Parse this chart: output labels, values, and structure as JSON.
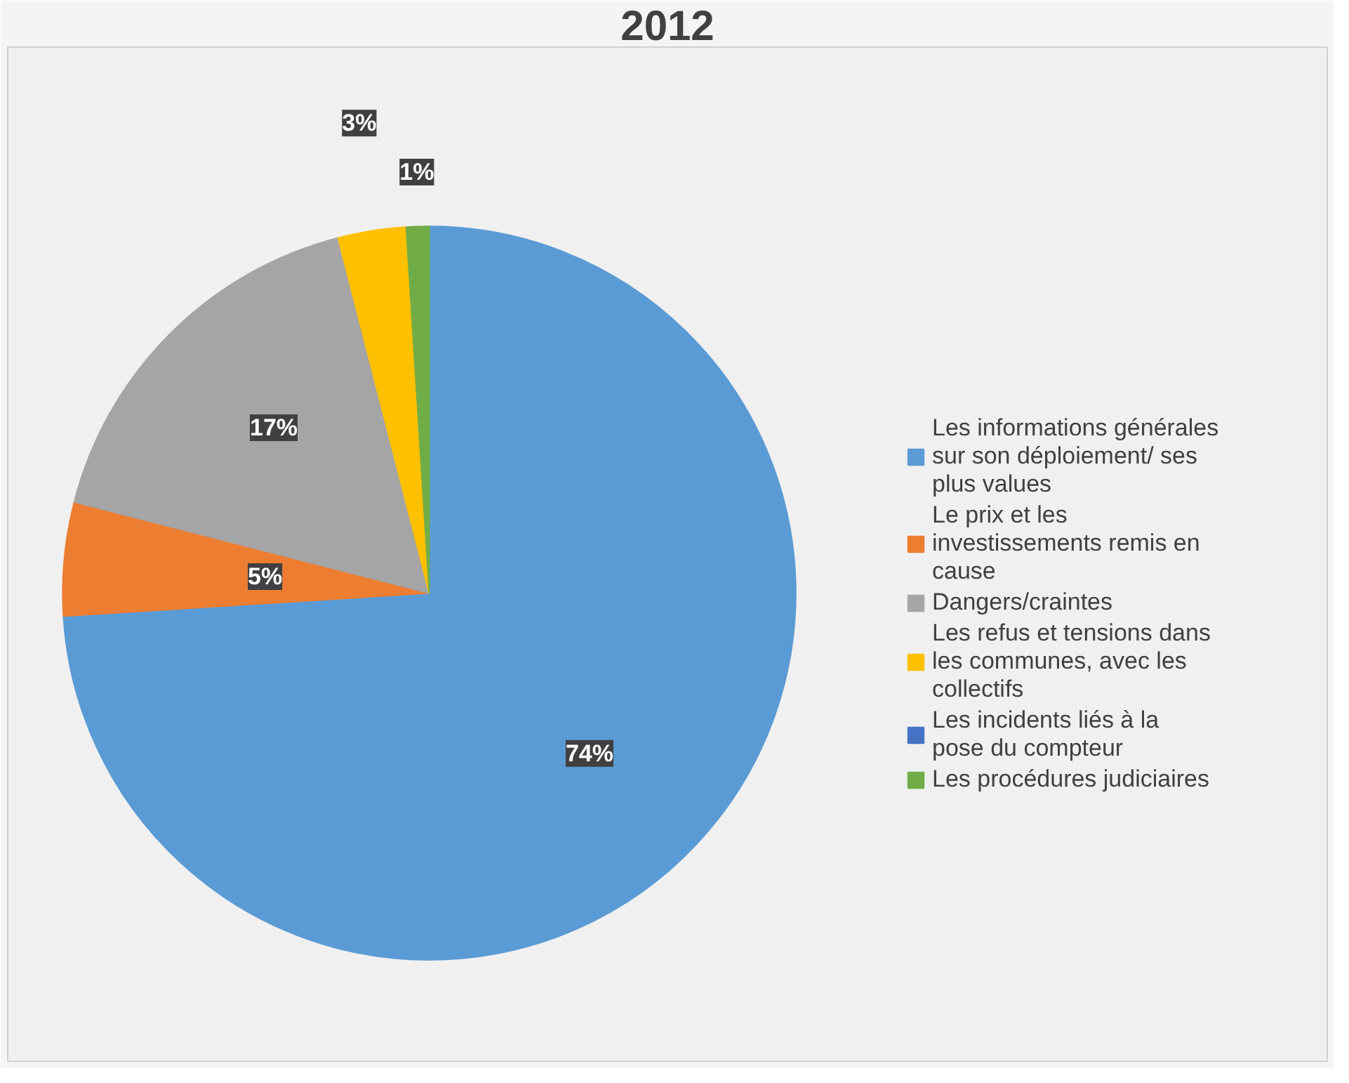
{
  "chart_data": {
    "type": "pie",
    "title": "2012",
    "categories": [
      "Les informations générales sur son déploiement/ ses plus values",
      "Le prix et les investissements remis en cause",
      "Dangers/craintes",
      "Les refus et tensions dans les communes, avec les collectifs",
      "Les incidents liés à la pose du compteur",
      "Les procédures judiciaires"
    ],
    "values": [
      74,
      5,
      17,
      3,
      0,
      1
    ],
    "colors": [
      "#5b9bd5",
      "#ed7d31",
      "#a5a5a5",
      "#ffc000",
      "#4472c4",
      "#70ad47"
    ],
    "value_labels": [
      "74%",
      "5%",
      "17%",
      "3%",
      null,
      "1%"
    ],
    "legend": "right"
  }
}
